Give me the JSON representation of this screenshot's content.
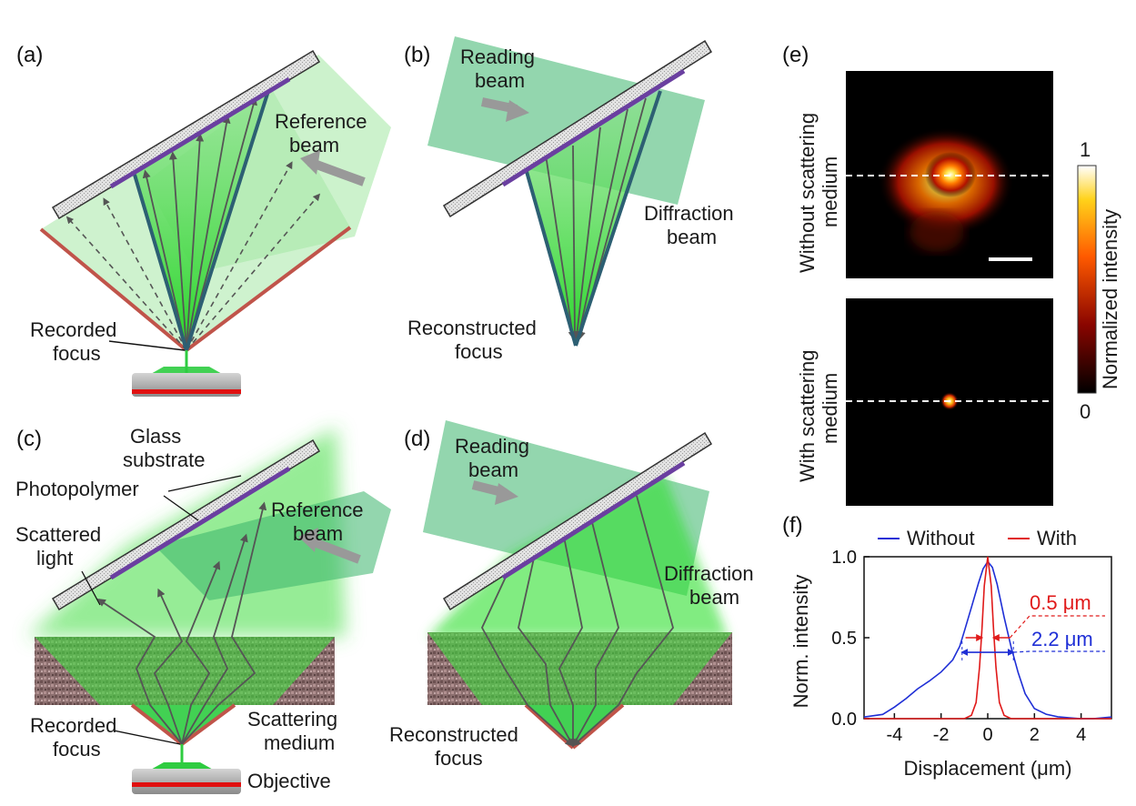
{
  "panels": {
    "a": {
      "label": "(a)",
      "recorded_focus": [
        "Recorded",
        "focus"
      ],
      "reference_beam": [
        "Reference",
        "beam"
      ]
    },
    "b": {
      "label": "(b)",
      "reading_beam": [
        "Reading",
        "beam"
      ],
      "diffraction_beam": [
        "Diffraction",
        "beam"
      ],
      "reconstructed_focus": [
        "Reconstructed",
        "focus"
      ]
    },
    "c": {
      "label": "(c)",
      "glass_substrate": [
        "Glass",
        "substrate"
      ],
      "photopolymer": "Photopolymer",
      "scattered_light": [
        "Scattered",
        "light"
      ],
      "reference_beam": [
        "Reference",
        "beam"
      ],
      "recorded_focus": [
        "Recorded",
        "focus"
      ],
      "scattering_medium": [
        "Scattering",
        "medium"
      ],
      "objective": "Objective"
    },
    "d": {
      "label": "(d)",
      "reading_beam": [
        "Reading",
        "beam"
      ],
      "diffraction_beam": [
        "Diffraction",
        "beam"
      ],
      "reconstructed_focus": [
        "Reconstructed",
        "focus"
      ]
    },
    "e": {
      "label": "(e)",
      "top_ylabel": [
        "Without scattering",
        "medium"
      ],
      "bottom_ylabel": [
        "With scattering",
        "medium"
      ],
      "colorbar_label": "Normalized intensity",
      "colorbar_max": "1",
      "colorbar_min": "0"
    },
    "f": {
      "label": "(f)"
    }
  },
  "chart_data": {
    "type": "line",
    "xlabel": "Displacement (μm)",
    "ylabel": "Norm. intensity",
    "xlim": [
      -5.3,
      5.3
    ],
    "ylim": [
      0.0,
      1.0
    ],
    "xticks": [
      -4,
      -2,
      0,
      2,
      4
    ],
    "xtick_labels": [
      "-4",
      "-2",
      "0",
      "2",
      "4"
    ],
    "yticks": [
      0.0,
      0.5,
      1.0
    ],
    "ytick_labels": [
      "0.0",
      "0.5",
      "1.0"
    ],
    "legend": [
      "Without",
      "With"
    ],
    "legend_position": "top",
    "series": [
      {
        "name": "Without",
        "color": "#1f2fd6",
        "x": [
          -5.3,
          -4.5,
          -4.0,
          -3.5,
          -3.0,
          -2.5,
          -2.0,
          -1.5,
          -1.2,
          -1.0,
          -0.7,
          -0.4,
          -0.2,
          0.0,
          0.2,
          0.4,
          0.7,
          1.0,
          1.3,
          1.6,
          2.0,
          2.5,
          3.0,
          3.5,
          4.0,
          4.5,
          5.3
        ],
        "y": [
          0.01,
          0.02,
          0.06,
          0.11,
          0.17,
          0.22,
          0.28,
          0.36,
          0.45,
          0.55,
          0.7,
          0.85,
          0.94,
          0.98,
          0.94,
          0.83,
          0.62,
          0.43,
          0.27,
          0.14,
          0.05,
          0.02,
          0.01,
          0.01,
          0.01,
          0.01,
          0.01
        ]
      },
      {
        "name": "With",
        "color": "#e01a1a",
        "x": [
          -5.3,
          -1.0,
          -0.7,
          -0.5,
          -0.35,
          -0.25,
          -0.15,
          0.0,
          0.15,
          0.25,
          0.35,
          0.5,
          0.7,
          1.0,
          5.3
        ],
        "y": [
          0.0,
          0.0,
          0.02,
          0.1,
          0.32,
          0.55,
          0.82,
          1.0,
          0.82,
          0.55,
          0.32,
          0.1,
          0.02,
          0.0,
          0.0
        ]
      }
    ],
    "annotations": [
      {
        "text": "0.5 μm",
        "color": "#e01a1a",
        "fwhm": [
          -0.25,
          0.25
        ],
        "y": 0.5
      },
      {
        "text": "2.2 μm",
        "color": "#1f2fd6",
        "fwhm": [
          -1.1,
          1.1
        ],
        "y": 0.41
      }
    ]
  }
}
